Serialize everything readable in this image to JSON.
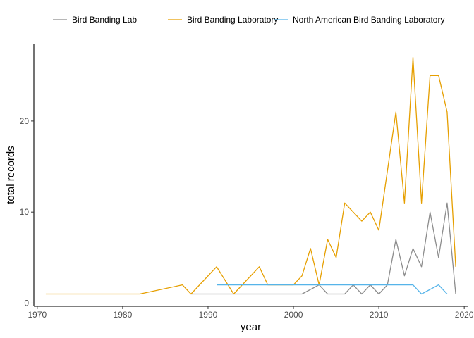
{
  "chart_data": {
    "type": "line",
    "xlabel": "year",
    "ylabel": "total records",
    "xlim": [
      1969.6,
      2020.4
    ],
    "ylim": [
      -0.35,
      28.5
    ],
    "xticks": [
      1970,
      1980,
      1990,
      2000,
      2010,
      2020
    ],
    "yticks": [
      0,
      10,
      20
    ],
    "grid": false,
    "legend_position": "top",
    "series": [
      {
        "name": "Bird Banding Lab",
        "color": "#8c8c8c",
        "x": [
          1988,
          1990,
          1995,
          2000,
          2001,
          2003,
          2004,
          2005,
          2006,
          2007,
          2008,
          2009,
          2010,
          2011,
          2012,
          2013,
          2014,
          2015,
          2016,
          2017,
          2018,
          2019
        ],
        "y": [
          1,
          1,
          1,
          1,
          1,
          2,
          1,
          1,
          1,
          2,
          1,
          2,
          1,
          2,
          7,
          3,
          6,
          4,
          10,
          5,
          11,
          1
        ]
      },
      {
        "name": "Bird Banding Laboratory",
        "color": "#e69f00",
        "x": [
          1971,
          1982,
          1987,
          1988,
          1991,
          1993,
          1996,
          1997,
          1999,
          2000,
          2001,
          2002,
          2003,
          2004,
          2005,
          2006,
          2008,
          2009,
          2010,
          2012,
          2013,
          2014,
          2015,
          2016,
          2017,
          2018,
          2019
        ],
        "y": [
          1,
          1,
          2,
          1,
          4,
          1,
          4,
          2,
          2,
          2,
          3,
          6,
          2,
          7,
          5,
          11,
          9,
          10,
          8,
          21,
          11,
          27,
          11,
          25,
          25,
          21,
          4
        ]
      },
      {
        "name": "North American Bird Banding Laboratory",
        "color": "#56b4e9",
        "x": [
          1991,
          1995,
          2000,
          2005,
          2010,
          2014,
          2015,
          2017,
          2018
        ],
        "y": [
          2,
          2,
          2,
          2,
          2,
          2,
          1,
          2,
          1
        ]
      }
    ]
  }
}
